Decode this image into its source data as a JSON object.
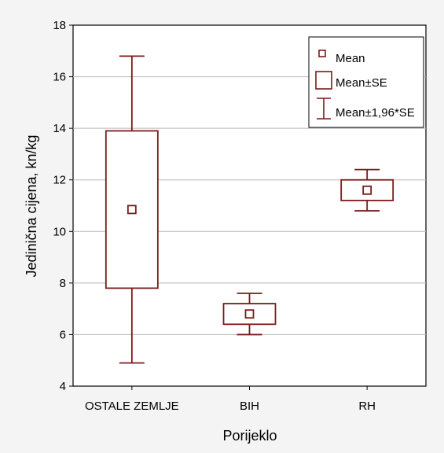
{
  "chart_data": {
    "type": "box",
    "xlabel": "Porijeklo",
    "ylabel": "Jedinična cijena, kn/kg",
    "categories": [
      "OSTALE ZEMLJE",
      "BIH",
      "RH"
    ],
    "ylim": [
      4,
      18
    ],
    "yticks": [
      4,
      6,
      8,
      10,
      12,
      14,
      16,
      18
    ],
    "grid": true,
    "series": [
      {
        "name": "Mean",
        "values": [
          10.85,
          6.8,
          11.6
        ]
      },
      {
        "name": "Mean±SE",
        "low": [
          7.8,
          6.4,
          11.2
        ],
        "high": [
          13.9,
          7.2,
          12.0
        ]
      },
      {
        "name": "Mean±1,96*SE",
        "low": [
          4.9,
          6.0,
          10.8
        ],
        "high": [
          16.8,
          7.6,
          12.4
        ]
      }
    ],
    "legend_position": "top-right",
    "color": "#7a1a1a"
  }
}
